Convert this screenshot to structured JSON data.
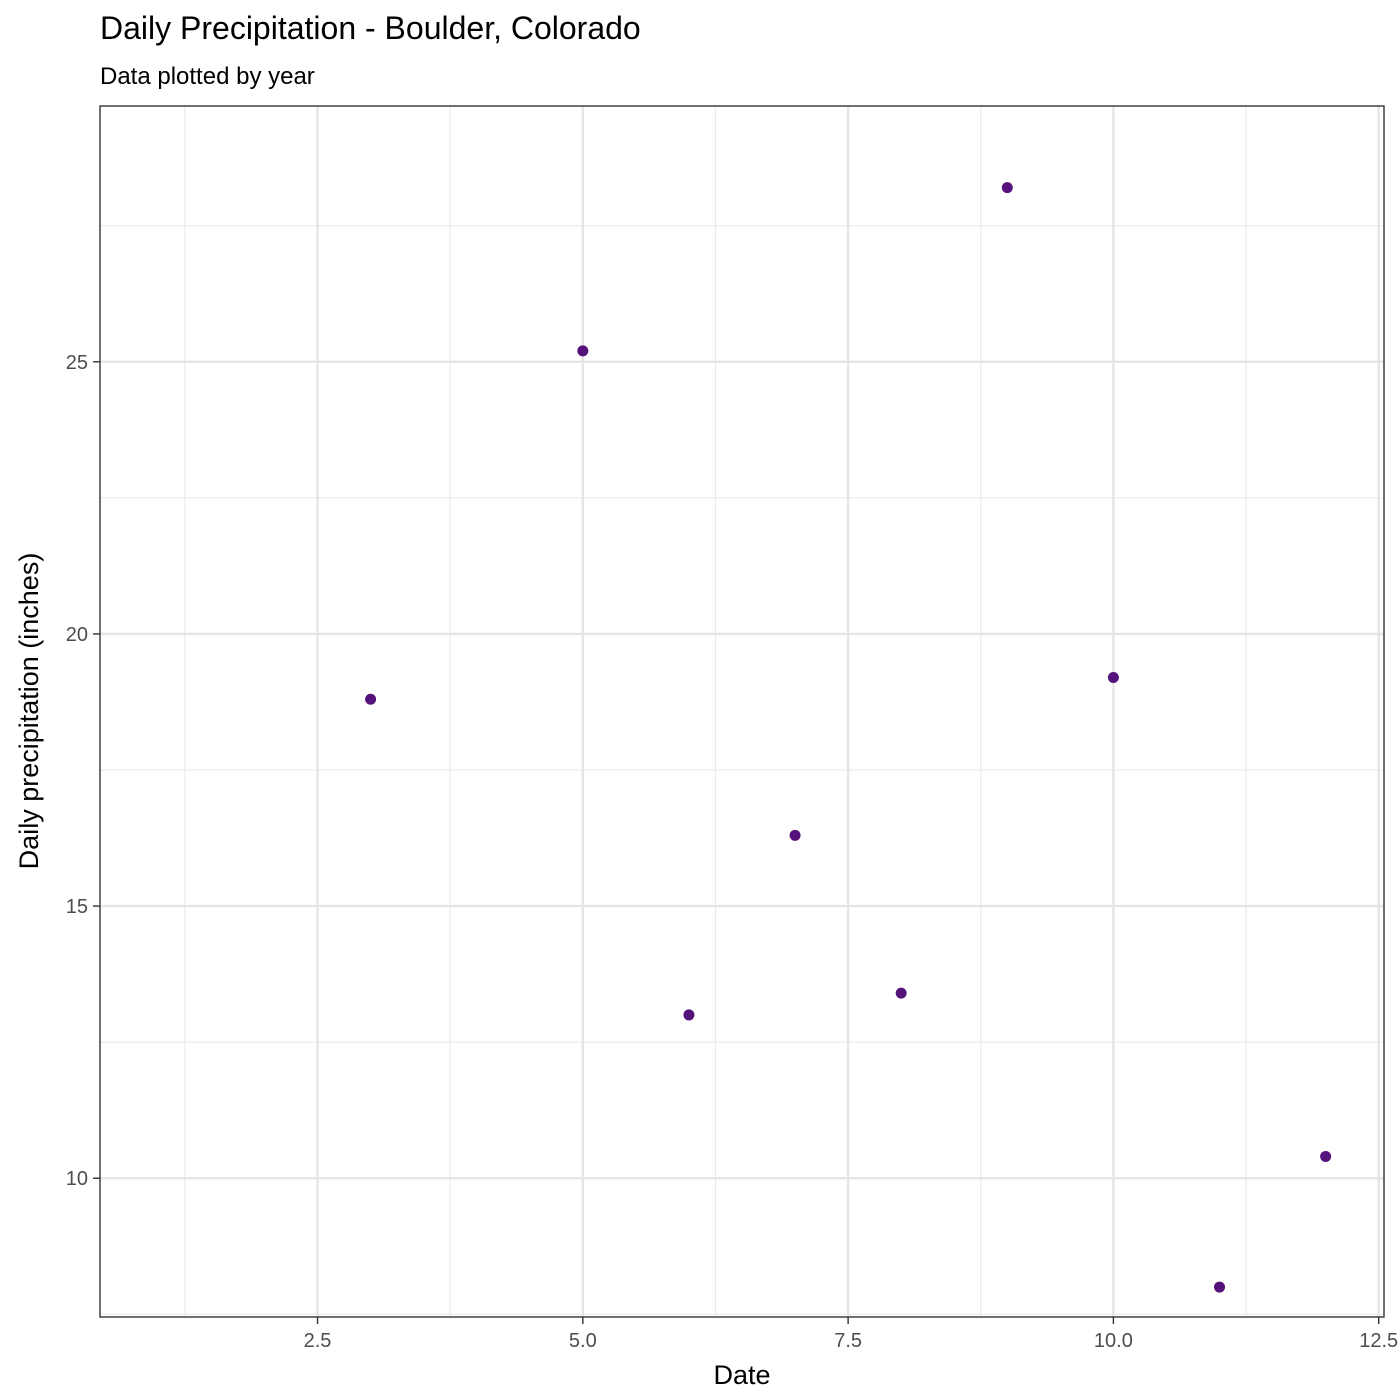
{
  "chart_data": {
    "type": "scatter",
    "title": "Daily Precipitation - Boulder, Colorado",
    "subtitle": "Data plotted by year",
    "xlabel": "Date",
    "ylabel": "Daily precipitation (inches)",
    "xlim": [
      0.45,
      12.55
    ],
    "ylim": [
      7.45,
      29.7
    ],
    "x_ticks": [
      2.5,
      5.0,
      7.5,
      10.0,
      12.5
    ],
    "x_tick_labels": [
      "2.5",
      "5.0",
      "7.5",
      "10.0",
      "12.5"
    ],
    "y_ticks": [
      10,
      15,
      20,
      25
    ],
    "y_tick_labels": [
      "10",
      "15",
      "20",
      "25"
    ],
    "grid": true,
    "point_color": "#54127a",
    "points": [
      {
        "x": 3,
        "y": 18.8
      },
      {
        "x": 5,
        "y": 25.2
      },
      {
        "x": 6,
        "y": 13.0
      },
      {
        "x": 7,
        "y": 16.3
      },
      {
        "x": 8,
        "y": 13.4
      },
      {
        "x": 9,
        "y": 28.2
      },
      {
        "x": 10,
        "y": 19.2
      },
      {
        "x": 11,
        "y": 8.0
      },
      {
        "x": 12,
        "y": 10.4
      }
    ]
  }
}
